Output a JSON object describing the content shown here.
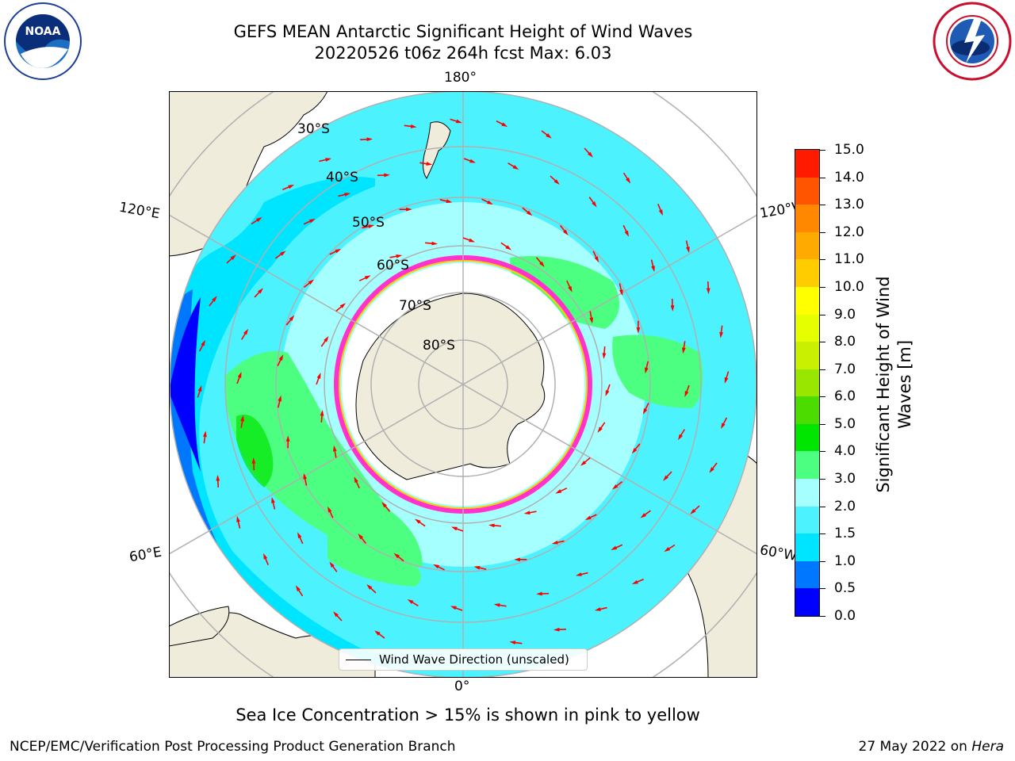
{
  "title": {
    "line1": "GEFS MEAN Antarctic Significant Height of Wind Waves",
    "line2": "20220526 t06z 264h fcst   Max: 6.03"
  },
  "logos": {
    "left": "NOAA",
    "right": "NATIONAL WEATHER SERVICE"
  },
  "map": {
    "projection": "south-polar stereographic",
    "longitude_labels": {
      "top": "180°",
      "bottom": "0°",
      "upper_left": "120°E",
      "upper_right": "120°W",
      "lower_left": "60°E",
      "lower_right": "60°W"
    },
    "latitude_labels": [
      "30°S",
      "40°S",
      "50°S",
      "60°S",
      "70°S",
      "80°S"
    ],
    "legend": "Wind Wave Direction (unscaled)",
    "arrow_color": "#ff0000",
    "land_color": "#efecdc"
  },
  "colorbar": {
    "label": "Significant Height of Wind Waves [m]",
    "label_line1": "Significant Height of Wind",
    "label_line2": "Waves [m]",
    "ticks": [
      "15.0",
      "14.0",
      "13.0",
      "12.0",
      "11.0",
      "10.0",
      "9.0",
      "8.0",
      "7.0",
      "6.0",
      "5.0",
      "4.0",
      "3.0",
      "2.0",
      "1.5",
      "1.0",
      "0.5",
      "0.0"
    ],
    "colors": [
      "#0000ff",
      "#0077ff",
      "#00e5ff",
      "#4df2ff",
      "#a6ffff",
      "#4dff80",
      "#00e600",
      "#4ddc00",
      "#99e600",
      "#c8f000",
      "#e6ff00",
      "#ffff00",
      "#ffcc00",
      "#ffaa00",
      "#ff8800",
      "#ff5500",
      "#ff1a00"
    ]
  },
  "note": "Sea Ice Concentration > 15% is shown in pink to yellow",
  "footer": {
    "left": "NCEP/EMC/Verification Post Processing Product Generation Branch",
    "right_prefix": "27 May 2022 on ",
    "right_machine": "Hera"
  }
}
